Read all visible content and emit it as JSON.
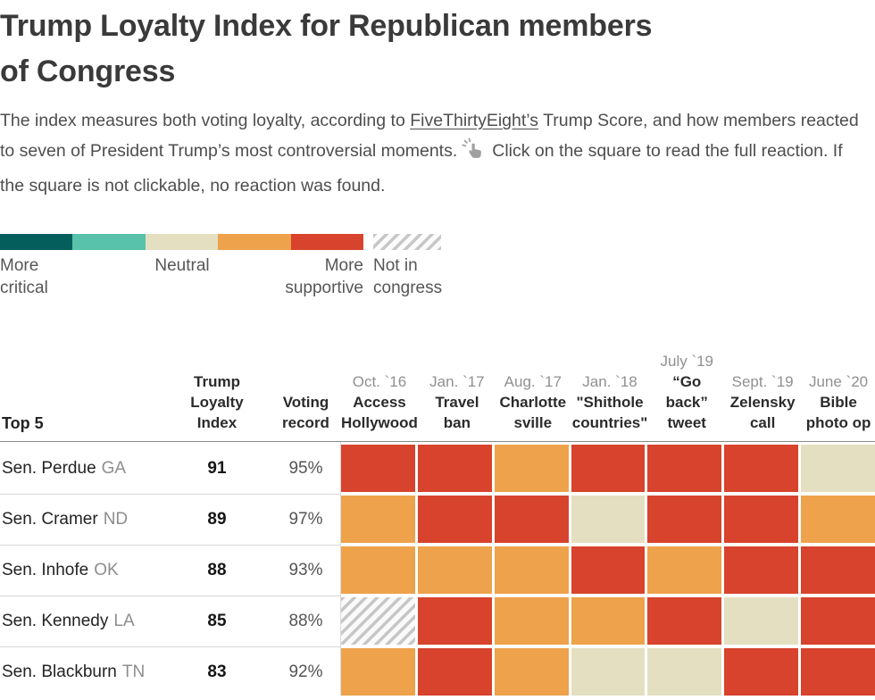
{
  "title": "Trump Loyalty Index for Republican members of Congress",
  "intro": {
    "before_link": "The index measures both voting loyalty, according to ",
    "link_text": "FiveThirtyEight’s",
    "after_link": " Trump Score, and how members reacted to seven of President Trump’s most controversial moments.",
    "icon": "tap-click-icon",
    "after_icon": "Click on the square to read the full reaction. If the square is not clickable, no reaction was found."
  },
  "legend": {
    "more_critical": "More\ncritical",
    "neutral": "Neutral",
    "more_supportive": "More\nsupportive",
    "not_in_congress": "Not in\ncongress"
  },
  "colors": {
    "teal_dark": "#035e5c",
    "teal": "#58c3aa",
    "cream": "#e4dfc0",
    "orange": "#eea24b",
    "red": "#d7432c",
    "hatch_gray": "#c7c7c7"
  },
  "chart_data": {
    "type": "heatmap",
    "title": "Trump Loyalty Index for Republican members of Congress",
    "legend_scale": [
      "More critical",
      "Neutral",
      "More supportive",
      "Not in congress"
    ],
    "group_label": "Top 5",
    "columns": [
      "Trump Loyalty Index",
      "Voting record",
      "Oct. `16 Access Hollywood",
      "Jan. `17 Travel ban",
      "Aug. `17 Charlottesville",
      "Jan. `18 \"Shithole countries\"",
      "July `19 “Go back” tweet",
      "Sept. `19 Zelensky call",
      "June `20 Bible photo op"
    ],
    "rows": [
      {
        "member": "Sen. Perdue",
        "state": "GA",
        "loyalty_index": 91,
        "voting_record": "95%",
        "reactions": [
          "supportive",
          "supportive",
          "somewhat-supportive",
          "supportive",
          "supportive",
          "supportive",
          "neutral"
        ]
      },
      {
        "member": "Sen. Cramer",
        "state": "ND",
        "loyalty_index": 89,
        "voting_record": "97%",
        "reactions": [
          "somewhat-supportive",
          "supportive",
          "supportive",
          "neutral",
          "supportive",
          "supportive",
          "somewhat-supportive"
        ]
      },
      {
        "member": "Sen. Inhofe",
        "state": "OK",
        "loyalty_index": 88,
        "voting_record": "93%",
        "reactions": [
          "somewhat-supportive",
          "somewhat-supportive",
          "somewhat-supportive",
          "supportive",
          "somewhat-supportive",
          "supportive",
          "supportive"
        ]
      },
      {
        "member": "Sen. Kennedy",
        "state": "LA",
        "loyalty_index": 85,
        "voting_record": "88%",
        "reactions": [
          "not-in-congress",
          "supportive",
          "somewhat-supportive",
          "somewhat-supportive",
          "supportive",
          "neutral",
          "supportive"
        ]
      },
      {
        "member": "Sen. Blackburn",
        "state": "TN",
        "loyalty_index": 83,
        "voting_record": "92%",
        "reactions": [
          "somewhat-supportive",
          "supportive",
          "somewhat-supportive",
          "neutral",
          "neutral",
          "supportive",
          "supportive"
        ]
      }
    ]
  },
  "table": {
    "row_header": "Top 5",
    "col_index": "Trump\nLoyalty\nIndex",
    "col_voting": "Voting\nrecord",
    "events": [
      {
        "date": "Oct. `16",
        "name": "Access\nHollywood"
      },
      {
        "date": "Jan. `17",
        "name": "Travel\nban"
      },
      {
        "date": "Aug. `17",
        "name": "Charlotte\nsville"
      },
      {
        "date": "Jan. `18",
        "name": "\"Shithole\ncountries\""
      },
      {
        "date": "July `19",
        "name": "“Go\nback”\ntweet"
      },
      {
        "date": "Sept. `19",
        "name": "Zelensky\ncall"
      },
      {
        "date": "June `20",
        "name": "Bible\nphoto op"
      }
    ],
    "rows": [
      {
        "name": "Sen. Perdue",
        "state": "GA",
        "index": "91",
        "voting": "95%",
        "cells": [
          "red",
          "red",
          "orange",
          "red",
          "red",
          "red",
          "cream"
        ]
      },
      {
        "name": "Sen. Cramer",
        "state": "ND",
        "index": "89",
        "voting": "97%",
        "cells": [
          "orange",
          "red",
          "red",
          "cream",
          "red",
          "red",
          "orange"
        ]
      },
      {
        "name": "Sen. Inhofe",
        "state": "OK",
        "index": "88",
        "voting": "93%",
        "cells": [
          "orange",
          "orange",
          "orange",
          "red",
          "orange",
          "red",
          "red"
        ]
      },
      {
        "name": "Sen. Kennedy",
        "state": "LA",
        "index": "85",
        "voting": "88%",
        "cells": [
          "hatch",
          "red",
          "orange",
          "orange",
          "red",
          "cream",
          "red"
        ]
      },
      {
        "name": "Sen. Blackburn",
        "state": "TN",
        "index": "83",
        "voting": "92%",
        "cells": [
          "orange",
          "red",
          "orange",
          "cream",
          "cream",
          "red",
          "red"
        ]
      }
    ]
  }
}
